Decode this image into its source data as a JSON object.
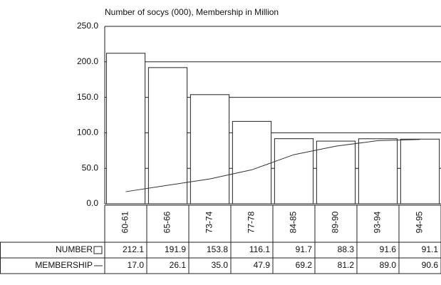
{
  "chart_data": {
    "type": "bar",
    "title": "Number of socys (000), Membership in Million",
    "categories": [
      "60-61",
      "65-66",
      "73-74",
      "77-78",
      "84-85",
      "89-90",
      "93-94",
      "94-95"
    ],
    "series": [
      {
        "name": "NUMBER",
        "type": "bar",
        "color": "#ffffff",
        "values": [
          212.1,
          191.9,
          153.8,
          116.1,
          91.7,
          88.3,
          91.6,
          91.1
        ]
      },
      {
        "name": "MEMBERSHIP",
        "type": "line",
        "color": "#333333",
        "values": [
          17.0,
          26.1,
          35.0,
          47.9,
          69.2,
          81.2,
          89.0,
          90.6
        ],
        "value_labels": [
          "17.0",
          "26.1",
          "35.0",
          "47.9",
          "69.2",
          "81.2",
          "89.0",
          "90.6"
        ]
      }
    ],
    "ylim": [
      0,
      250
    ],
    "yticks": [
      {
        "value": 0,
        "label": "0.0"
      },
      {
        "value": 50,
        "label": "50.0"
      },
      {
        "value": 100,
        "label": "100.0"
      },
      {
        "value": 150,
        "label": "150.0"
      },
      {
        "value": 200,
        "label": "200.0"
      },
      {
        "value": 250,
        "label": "250.0"
      }
    ],
    "grid": true
  }
}
